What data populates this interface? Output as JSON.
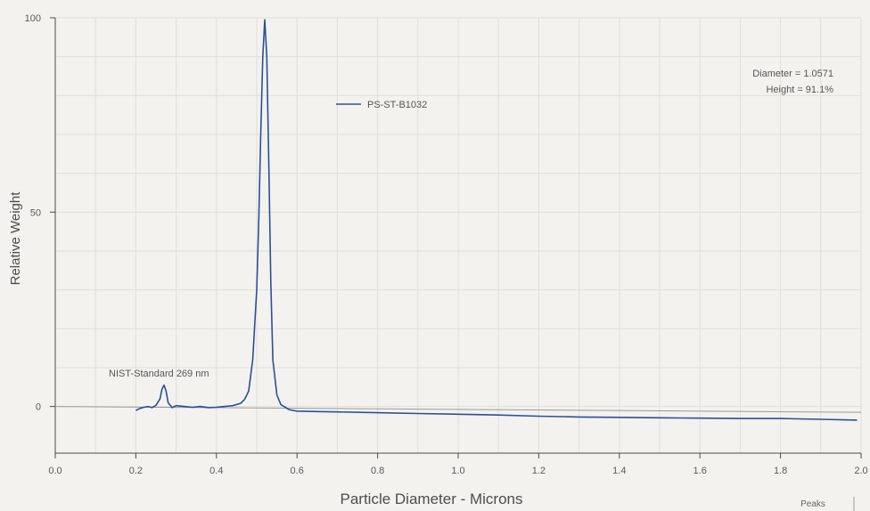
{
  "chart_data": {
    "type": "line",
    "xlabel": "Particle Diameter - Microns",
    "ylabel": "Relative Weight",
    "xlim": [
      0.0,
      2.0
    ],
    "ylim": [
      -12,
      100
    ],
    "x_ticks": [
      "0.0",
      "0.2",
      "0.4",
      "0.6",
      "0.8",
      "1.0",
      "1.2",
      "1.4",
      "1.6",
      "1.8",
      "2.0"
    ],
    "x_tick_values": [
      0.0,
      0.2,
      0.4,
      0.6,
      0.8,
      1.0,
      1.2,
      1.4,
      1.6,
      1.8,
      2.0
    ],
    "y_ticks": [
      "0",
      "50",
      "100"
    ],
    "y_tick_values": [
      0,
      50,
      100
    ],
    "grid": true,
    "legend_position": "top-center",
    "series": [
      {
        "name": "PS-ST-B1032",
        "color": "#2c4f9a",
        "x": [
          0.2,
          0.21,
          0.22,
          0.23,
          0.24,
          0.25,
          0.26,
          0.265,
          0.27,
          0.275,
          0.28,
          0.29,
          0.3,
          0.32,
          0.34,
          0.36,
          0.38,
          0.4,
          0.42,
          0.44,
          0.46,
          0.47,
          0.48,
          0.49,
          0.5,
          0.505,
          0.51,
          0.515,
          0.52,
          0.525,
          0.53,
          0.535,
          0.54,
          0.55,
          0.56,
          0.58,
          0.6,
          0.65,
          0.7,
          0.8,
          0.9,
          1.0,
          1.1,
          1.2,
          1.3,
          1.4,
          1.5,
          1.6,
          1.7,
          1.8,
          1.9,
          1.99
        ],
        "y": [
          -1.0,
          -0.5,
          -0.2,
          0.0,
          -0.3,
          0.3,
          2.0,
          4.5,
          5.5,
          4.0,
          1.0,
          -0.3,
          0.2,
          0.0,
          -0.2,
          0.0,
          -0.3,
          -0.2,
          0.0,
          0.2,
          0.8,
          1.8,
          4.0,
          12.0,
          30.0,
          48.0,
          70.0,
          90.0,
          99.5,
          90.0,
          62.0,
          32.0,
          12.0,
          3.0,
          0.5,
          -0.8,
          -1.2,
          -1.3,
          -1.4,
          -1.6,
          -1.8,
          -2.0,
          -2.2,
          -2.5,
          -2.7,
          -2.8,
          -2.9,
          -3.0,
          -3.1,
          -3.1,
          -3.3,
          -3.5
        ]
      }
    ],
    "baseline": {
      "y_start": 0,
      "y_end": -1.5
    },
    "annotations": {
      "peak_label": "NIST-Standard 269 nm",
      "diameter": "Diameter = 1.0571",
      "height": "Height = 91.1%"
    },
    "footer_label": "Peaks"
  }
}
